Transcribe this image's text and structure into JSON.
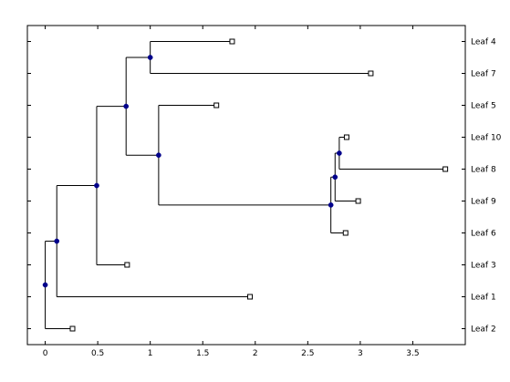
{
  "chart_data": {
    "type": "dendrogram",
    "orientation": "horizontal",
    "x_ticks": [
      {
        "value": 0,
        "label": "0"
      },
      {
        "value": 0.5,
        "label": "0.5"
      },
      {
        "value": 1,
        "label": "1"
      },
      {
        "value": 1.5,
        "label": "1.5"
      },
      {
        "value": 2,
        "label": "2"
      },
      {
        "value": 2.5,
        "label": "2.5"
      },
      {
        "value": 3,
        "label": "3"
      },
      {
        "value": 3.5,
        "label": "3.5"
      }
    ],
    "xlim": [
      -0.17,
      4.0
    ],
    "leaf_order_top_to_bottom": [
      "Leaf 4",
      "Leaf 7",
      "Leaf 5",
      "Leaf 10",
      "Leaf 8",
      "Leaf 9",
      "Leaf 6",
      "Leaf 3",
      "Leaf 1",
      "Leaf 2"
    ],
    "leaves": [
      {
        "name": "Leaf 4",
        "x": 1.78
      },
      {
        "name": "Leaf 7",
        "x": 3.1
      },
      {
        "name": "Leaf 5",
        "x": 1.63
      },
      {
        "name": "Leaf 10",
        "x": 2.87
      },
      {
        "name": "Leaf 8",
        "x": 3.81
      },
      {
        "name": "Leaf 9",
        "x": 2.98
      },
      {
        "name": "Leaf 6",
        "x": 2.86
      },
      {
        "name": "Leaf 3",
        "x": 0.78
      },
      {
        "name": "Leaf 1",
        "x": 1.95
      },
      {
        "name": "Leaf 2",
        "x": 0.26
      }
    ],
    "nodes": [
      {
        "id": "n1",
        "x": 0.0,
        "children": [
          "n2",
          "Leaf 2"
        ]
      },
      {
        "id": "n2",
        "x": 0.11,
        "children": [
          "n3",
          "Leaf 1"
        ]
      },
      {
        "id": "n3",
        "x": 0.49,
        "children": [
          "n4",
          "Leaf 3"
        ]
      },
      {
        "id": "n4",
        "x": 0.77,
        "children": [
          "n5",
          "n6"
        ]
      },
      {
        "id": "n5",
        "x": 1.0,
        "children": [
          "Leaf 4",
          "Leaf 7"
        ]
      },
      {
        "id": "n6",
        "x": 1.08,
        "children": [
          "Leaf 5",
          "n7"
        ]
      },
      {
        "id": "n7",
        "x": 2.72,
        "children": [
          "n8",
          "Leaf 6"
        ]
      },
      {
        "id": "n8",
        "x": 2.76,
        "children": [
          "n9",
          "Leaf 9"
        ]
      },
      {
        "id": "n9",
        "x": 2.8,
        "children": [
          "Leaf 10",
          "Leaf 8"
        ]
      }
    ],
    "colors": {
      "line": "#000000",
      "node_fill": "#00008b",
      "leaf_fill": "#ffffff"
    }
  }
}
